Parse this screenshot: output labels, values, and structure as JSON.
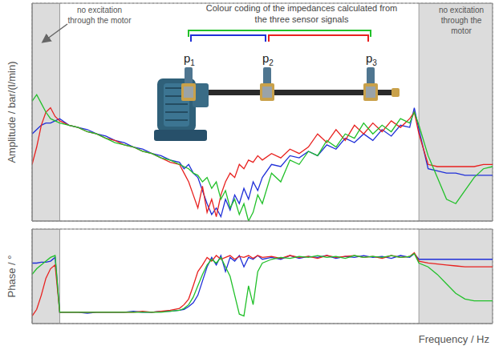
{
  "chart_data": [
    {
      "type": "line",
      "y_label": "Amplitude / bar/(l/min)",
      "x": [
        0,
        1,
        2,
        3,
        4,
        5,
        6,
        8,
        10,
        12,
        14,
        16,
        18,
        20,
        22,
        24,
        26,
        28,
        30,
        32,
        33,
        34,
        35,
        36,
        37,
        38,
        39,
        40,
        41,
        42,
        43,
        44,
        45,
        46,
        47,
        48,
        49,
        50,
        52,
        54,
        56,
        58,
        60,
        62,
        64,
        66,
        68,
        70,
        72,
        74,
        76,
        78,
        80,
        82,
        83,
        84,
        86,
        88,
        90,
        92,
        94,
        96,
        98,
        100
      ],
      "xlim": [
        0,
        100
      ],
      "xticks": [
        0,
        19,
        42,
        64,
        84,
        100
      ],
      "ylim": [
        0,
        100
      ],
      "yticks": [
        0,
        19,
        49,
        77,
        100
      ],
      "grid": true,
      "tick_labels": false,
      "shaded_regions": [
        [
          0,
          6
        ],
        [
          84,
          100
        ]
      ],
      "annotations": {
        "left_region": "no excitation through the motor",
        "right_region": "no excitation through the motor",
        "colour_coding": "Colour coding of the impedances calculated from the three sensor signals",
        "sensors": [
          "p1",
          "p2",
          "p3"
        ]
      },
      "series": [
        {
          "color": "#1f2fd8",
          "values": [
            40,
            42,
            44,
            45,
            45,
            46,
            47,
            44,
            43,
            42,
            40,
            39,
            37,
            36,
            34,
            33,
            31,
            30,
            28,
            27,
            24,
            26,
            22,
            20,
            14,
            8,
            3,
            6,
            2,
            10,
            5,
            12,
            8,
            15,
            10,
            18,
            14,
            20,
            26,
            25,
            30,
            29,
            32,
            30,
            35,
            33,
            38,
            36,
            40,
            37,
            42,
            39,
            44,
            43,
            52,
            42,
            24,
            23,
            22,
            22,
            21,
            21,
            21,
            21
          ]
        },
        {
          "color": "#e8211f",
          "values": [
            26,
            34,
            44,
            50,
            52,
            48,
            46,
            44,
            43,
            41,
            40,
            38,
            37,
            35,
            34,
            32,
            31,
            29,
            27,
            26,
            22,
            18,
            12,
            6,
            16,
            4,
            10,
            2,
            12,
            18,
            22,
            20,
            26,
            24,
            28,
            27,
            30,
            28,
            31,
            29,
            33,
            31,
            34,
            40,
            36,
            42,
            37,
            44,
            40,
            45,
            41,
            46,
            43,
            47,
            50,
            40,
            26,
            25,
            25,
            25,
            25,
            25,
            26,
            26
          ]
        },
        {
          "color": "#22c02a",
          "values": [
            55,
            58,
            54,
            50,
            47,
            46,
            45,
            44,
            43,
            41,
            40,
            38,
            36,
            35,
            34,
            32,
            31,
            29,
            28,
            26,
            25,
            24,
            22,
            21,
            18,
            20,
            15,
            18,
            10,
            14,
            6,
            10,
            3,
            8,
            0,
            4,
            12,
            8,
            22,
            18,
            28,
            26,
            32,
            30,
            37,
            34,
            40,
            38,
            45,
            40,
            44,
            41,
            47,
            45,
            50,
            44,
            30,
            20,
            10,
            8,
            14,
            20,
            24,
            25
          ]
        }
      ]
    },
    {
      "type": "line",
      "y_label": "Phase / °",
      "x_label": "Frequency / Hz",
      "x": [
        0,
        1,
        2,
        3,
        4,
        5,
        6,
        8,
        10,
        12,
        14,
        16,
        18,
        20,
        22,
        24,
        26,
        28,
        30,
        32,
        33,
        34,
        35,
        36,
        37,
        38,
        39,
        40,
        41,
        42,
        43,
        44,
        45,
        46,
        47,
        48,
        49,
        50,
        52,
        54,
        56,
        58,
        60,
        62,
        64,
        66,
        68,
        70,
        72,
        74,
        76,
        78,
        80,
        82,
        83,
        84,
        86,
        88,
        90,
        92,
        94,
        96,
        98,
        100
      ],
      "xlim": [
        0,
        100
      ],
      "xticks": [
        0,
        19,
        42,
        64,
        84,
        100
      ],
      "ylim": [
        0,
        100
      ],
      "yticks": [
        0,
        36,
        75,
        100
      ],
      "grid": true,
      "tick_labels": false,
      "shaded_regions": [
        [
          0,
          6
        ],
        [
          84,
          100
        ]
      ],
      "series": [
        {
          "color": "#1f2fd8",
          "values": [
            64,
            64,
            65,
            65,
            66,
            70,
            12,
            12,
            12,
            11,
            12,
            12,
            12,
            12,
            13,
            12,
            12,
            13,
            13,
            14,
            15,
            18,
            22,
            30,
            45,
            60,
            70,
            62,
            72,
            55,
            70,
            66,
            72,
            60,
            70,
            68,
            72,
            68,
            70,
            68,
            72,
            69,
            71,
            70,
            72,
            69,
            71,
            70,
            72,
            70,
            71,
            69,
            72,
            70,
            74,
            68,
            68,
            68,
            68,
            68,
            68,
            68,
            68,
            68
          ]
        },
        {
          "color": "#e8211f",
          "values": [
            8,
            15,
            30,
            48,
            58,
            62,
            12,
            12,
            12,
            12,
            12,
            12,
            12,
            12,
            12,
            13,
            12,
            13,
            14,
            16,
            20,
            26,
            40,
            55,
            62,
            70,
            66,
            72,
            68,
            70,
            72,
            68,
            71,
            70,
            72,
            69,
            72,
            70,
            71,
            69,
            72,
            70,
            71,
            69,
            72,
            70,
            71,
            72,
            70,
            71,
            69,
            72,
            70,
            71,
            75,
            66,
            64,
            63,
            62,
            61,
            60,
            60,
            60,
            60
          ]
        },
        {
          "color": "#22c02a",
          "values": [
            52,
            58,
            62,
            66,
            70,
            72,
            12,
            12,
            12,
            12,
            12,
            12,
            12,
            12,
            12,
            12,
            12,
            12,
            13,
            14,
            16,
            20,
            28,
            40,
            52,
            62,
            68,
            64,
            70,
            60,
            50,
            30,
            10,
            8,
            40,
            20,
            55,
            64,
            68,
            70,
            69,
            71,
            70,
            72,
            70,
            71,
            69,
            72,
            70,
            71,
            70,
            72,
            70,
            71,
            74,
            64,
            60,
            52,
            42,
            32,
            26,
            24,
            24,
            24
          ]
        }
      ]
    }
  ]
}
